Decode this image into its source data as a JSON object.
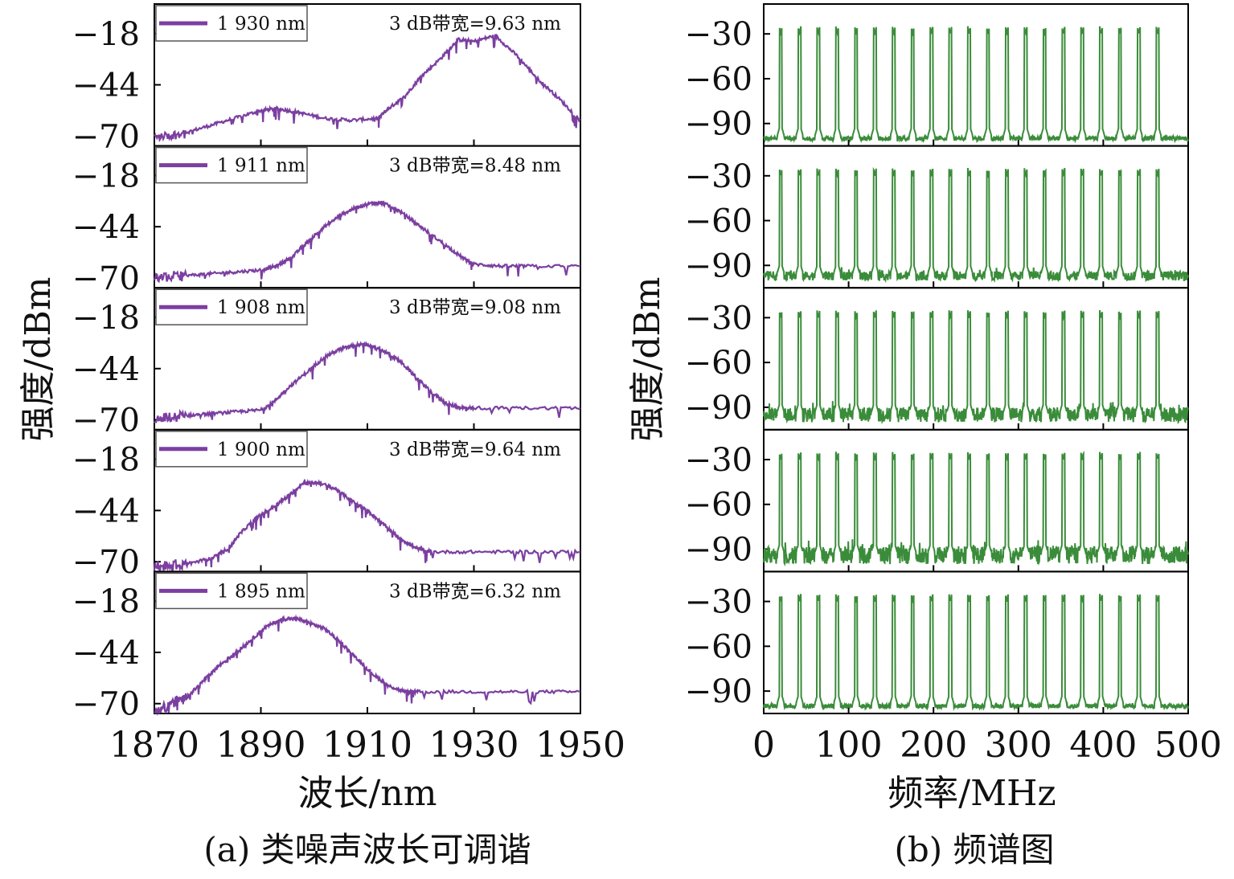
{
  "colors": {
    "spectrum": "#7b3fa0",
    "rf": "#3a8c3a",
    "axis": "#000000"
  },
  "chart_data": [
    {
      "type": "line",
      "caption": "(a) 类噪声波长可调谐",
      "xlabel": "波长/nm",
      "ylabel": "强度/dBm",
      "xlim": [
        1870,
        1950
      ],
      "xticks": [
        1870,
        1890,
        1910,
        1930,
        1950
      ],
      "ylim": [
        -75,
        -3
      ],
      "yticks": [
        "−18",
        "−44",
        "−70"
      ],
      "ytick_values": [
        -18,
        -44,
        -70
      ],
      "series": [
        {
          "name": "1 930 nm",
          "annotation": "3 dB带宽=9.63 nm",
          "center": 1930,
          "bandwidth": 9.63,
          "x": [
            1870,
            1875,
            1880,
            1885,
            1890,
            1893,
            1897,
            1902,
            1907,
            1912,
            1914,
            1917,
            1920,
            1924,
            1927,
            1930,
            1934,
            1938,
            1942,
            1946,
            1950
          ],
          "y": [
            -71,
            -69,
            -65,
            -61,
            -57,
            -56,
            -58,
            -61,
            -62,
            -61,
            -56,
            -50,
            -40,
            -30,
            -21,
            -22,
            -19,
            -29,
            -41,
            -51,
            -62
          ]
        },
        {
          "name": "1 911 nm",
          "annotation": "3 dB带宽=8.48 nm",
          "center": 1911,
          "bandwidth": 8.48,
          "x": [
            1870,
            1875,
            1880,
            1885,
            1890,
            1893,
            1896,
            1899,
            1902,
            1905,
            1908,
            1911,
            1913,
            1916,
            1920,
            1924,
            1928,
            1930,
            1935,
            1940,
            1950
          ],
          "y": [
            -70,
            -69,
            -68,
            -67,
            -66,
            -64,
            -59,
            -51,
            -44,
            -38,
            -34,
            -32,
            -32,
            -36,
            -44,
            -52,
            -60,
            -63,
            -64,
            -64,
            -64
          ]
        },
        {
          "name": "1 908 nm",
          "annotation": "3 dB带宽=9.08 nm",
          "center": 1908,
          "bandwidth": 9.08,
          "x": [
            1870,
            1875,
            1880,
            1885,
            1890,
            1892,
            1895,
            1899,
            1902,
            1905,
            1908,
            1910,
            1913,
            1916,
            1919,
            1922,
            1925,
            1928,
            1930,
            1940,
            1950
          ],
          "y": [
            -70,
            -68,
            -67,
            -66,
            -65,
            -62,
            -54,
            -45,
            -38,
            -34,
            -32,
            -32,
            -35,
            -40,
            -48,
            -56,
            -62,
            -64,
            -64,
            -64,
            -64
          ]
        },
        {
          "name": "1 900 nm",
          "annotation": "3 dB带宽=9.64 nm",
          "center": 1900,
          "bandwidth": 9.64,
          "x": [
            1870,
            1874,
            1878,
            1881,
            1884,
            1886,
            1889,
            1892,
            1895,
            1898,
            1901,
            1904,
            1907,
            1910,
            1913,
            1916,
            1919,
            1922,
            1930,
            1940,
            1950
          ],
          "y": [
            -72,
            -72,
            -70,
            -68,
            -63,
            -56,
            -48,
            -43,
            -37,
            -30,
            -30,
            -33,
            -39,
            -44,
            -51,
            -58,
            -63,
            -65,
            -65,
            -65,
            -65
          ]
        },
        {
          "name": "1 895 nm",
          "annotation": "3 dB带宽=6.32 nm",
          "center": 1895,
          "bandwidth": 6.32,
          "x": [
            1870,
            1873,
            1876,
            1879,
            1882,
            1885,
            1888,
            1891,
            1894,
            1897,
            1899,
            1902,
            1905,
            1908,
            1911,
            1914,
            1917,
            1920,
            1930,
            1940,
            1950
          ],
          "y": [
            -75,
            -70,
            -67,
            -59,
            -51,
            -45,
            -38,
            -31,
            -27,
            -27,
            -29,
            -32,
            -39,
            -47,
            -55,
            -61,
            -64,
            -64,
            -64,
            -64,
            -64
          ]
        }
      ]
    },
    {
      "type": "line",
      "caption": "(b) 频谱图",
      "xlabel": "频率/MHz",
      "ylabel": "强度/dBm",
      "xlim": [
        0,
        500
      ],
      "xticks": [
        0,
        100,
        200,
        300,
        400,
        500
      ],
      "ylim": [
        -105,
        -10
      ],
      "yticks": [
        "−30",
        "−60",
        "−90"
      ],
      "ytick_values": [
        -30,
        -60,
        -90
      ],
      "comb": {
        "first_peak": 20,
        "spacing": 22.2,
        "count": 21,
        "peak_level": -30,
        "floor_level": [
          -100,
          -97,
          -95,
          -94,
          -100
        ],
        "noise_amplitude": [
          1.5,
          3,
          5,
          6,
          1.5
        ]
      }
    }
  ]
}
